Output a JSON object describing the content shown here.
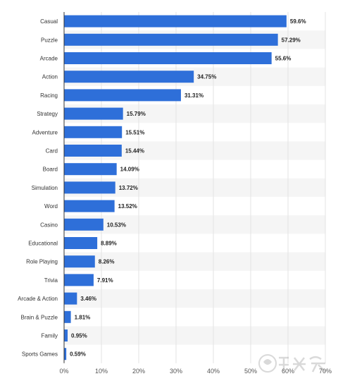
{
  "chart_data": {
    "type": "bar",
    "orientation": "horizontal",
    "categories": [
      "Casual",
      "Puzzle",
      "Arcade",
      "Action",
      "Racing",
      "Strategy",
      "Adventure",
      "Card",
      "Board",
      "Simulation",
      "Word",
      "Casino",
      "Educational",
      "Role Playing",
      "Trivia",
      "Arcade & Action",
      "Brain & Puzzle",
      "Family",
      "Sports Games"
    ],
    "values": [
      59.6,
      57.29,
      55.6,
      34.75,
      31.31,
      15.79,
      15.51,
      15.44,
      14.09,
      13.72,
      13.52,
      10.53,
      8.89,
      8.26,
      7.91,
      3.46,
      1.81,
      0.95,
      0.59
    ],
    "value_labels": [
      "59.6%",
      "57.29%",
      "55.6%",
      "34.75%",
      "31.31%",
      "15.79%",
      "15.51%",
      "15.44%",
      "14.09%",
      "13.72%",
      "13.52%",
      "10.53%",
      "8.89%",
      "8.26%",
      "7.91%",
      "3.46%",
      "1.81%",
      "0.95%",
      "0.59%"
    ],
    "x_ticks": [
      0,
      10,
      20,
      30,
      40,
      50,
      60,
      70
    ],
    "x_tick_labels": [
      "0%",
      "10%",
      "20%",
      "30%",
      "40%",
      "50%",
      "60%",
      "70%"
    ],
    "xlim": [
      0,
      70
    ],
    "title": "",
    "xlabel": "",
    "ylabel": "",
    "grid": true,
    "bar_color": "#2e6fd9",
    "stripe_color": "#f5f5f5"
  },
  "watermark": {
    "text": "游戏狗"
  }
}
